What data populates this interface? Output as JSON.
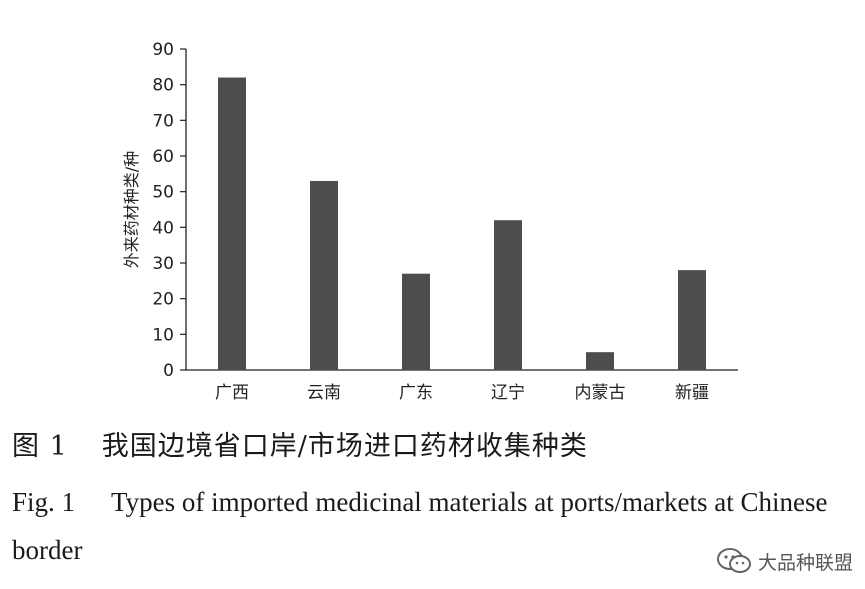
{
  "chart_data": {
    "type": "bar",
    "categories": [
      "广西",
      "云南",
      "广东",
      "辽宁",
      "内蒙古",
      "新疆"
    ],
    "values": [
      82,
      53,
      27,
      42,
      5,
      28
    ],
    "ylabel": "外来药材种类/种",
    "xlabel": "",
    "ylim": [
      0,
      90
    ],
    "yticks": [
      0,
      10,
      20,
      30,
      40,
      50,
      60,
      70,
      80,
      90
    ],
    "bar_color": "#4d4d4d",
    "grid": false
  },
  "caption": {
    "cn_fig": "图 1",
    "cn_text": "我国边境省口岸/市场进口药材收集种类",
    "en_fig": "Fig. 1",
    "en_text": "Types of imported medicinal materials at ports/markets at Chinese border"
  },
  "watermark": {
    "icon": "wechat-icon",
    "text": "大品种联盟"
  }
}
